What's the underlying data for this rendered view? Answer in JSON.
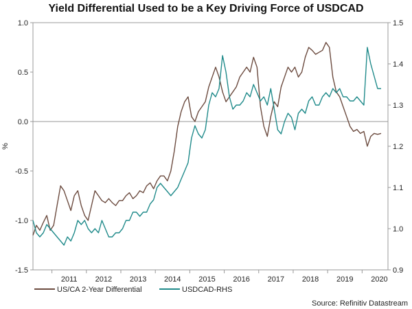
{
  "chart_data": {
    "type": "line",
    "title": "Yield Differential Used to be a Key Driving Force of USDCAD",
    "ylabel": "%",
    "ylim": [
      -1.5,
      1.0
    ],
    "y2lim": [
      0.9,
      1.5
    ],
    "yticks": [
      "1.0",
      "0.5",
      "0.0",
      "-0.5",
      "-1.0",
      "-1.5"
    ],
    "yticks_values": [
      1.0,
      0.5,
      0.0,
      -0.5,
      -1.0,
      -1.5
    ],
    "y2ticks": [
      "1.5",
      "1.4",
      "1.3",
      "1.2",
      "1.1",
      "1.0",
      "0.9"
    ],
    "y2ticks_values": [
      1.5,
      1.4,
      1.3,
      1.2,
      1.1,
      1.0,
      0.9
    ],
    "xlim": [
      2010.45,
      2020.75
    ],
    "xticks": [
      "2011",
      "2012",
      "2013",
      "2014",
      "2015",
      "2016",
      "2017",
      "2018",
      "2019",
      "2020"
    ],
    "xticks_values": [
      2011,
      2012,
      2013,
      2014,
      2015,
      2016,
      2017,
      2018,
      2019,
      2020
    ],
    "source": "Source: Refinitiv Datastream",
    "zero_line": 0.0,
    "series": [
      {
        "name": "US/CA 2-Year Differential",
        "axis": "left",
        "color": "#6b4a3e",
        "x": [
          2010.45,
          2010.55,
          2010.65,
          2010.75,
          2010.85,
          2010.95,
          2011.05,
          2011.15,
          2011.25,
          2011.35,
          2011.45,
          2011.55,
          2011.65,
          2011.75,
          2011.85,
          2011.95,
          2012.05,
          2012.15,
          2012.25,
          2012.35,
          2012.45,
          2012.55,
          2012.65,
          2012.75,
          2012.85,
          2012.95,
          2013.05,
          2013.15,
          2013.25,
          2013.35,
          2013.45,
          2013.55,
          2013.65,
          2013.75,
          2013.85,
          2013.95,
          2014.05,
          2014.15,
          2014.25,
          2014.35,
          2014.45,
          2014.55,
          2014.65,
          2014.75,
          2014.85,
          2014.95,
          2015.05,
          2015.15,
          2015.25,
          2015.35,
          2015.45,
          2015.55,
          2015.65,
          2015.75,
          2015.85,
          2015.95,
          2016.05,
          2016.15,
          2016.25,
          2016.35,
          2016.45,
          2016.55,
          2016.65,
          2016.75,
          2016.85,
          2016.95,
          2017.05,
          2017.15,
          2017.25,
          2017.35,
          2017.45,
          2017.55,
          2017.65,
          2017.75,
          2017.85,
          2017.95,
          2018.05,
          2018.15,
          2018.25,
          2018.35,
          2018.45,
          2018.55,
          2018.65,
          2018.75,
          2018.85,
          2018.95,
          2019.05,
          2019.15,
          2019.25,
          2019.35,
          2019.45,
          2019.55,
          2019.65,
          2019.75,
          2019.85,
          2019.95,
          2020.05,
          2020.15,
          2020.25,
          2020.35,
          2020.45,
          2020.55
        ],
        "values": [
          -1.15,
          -1.05,
          -1.1,
          -1.02,
          -0.95,
          -1.1,
          -1.05,
          -0.85,
          -0.65,
          -0.7,
          -0.8,
          -0.9,
          -0.75,
          -0.7,
          -0.85,
          -0.95,
          -1.0,
          -0.85,
          -0.7,
          -0.75,
          -0.8,
          -0.82,
          -0.78,
          -0.82,
          -0.85,
          -0.8,
          -0.8,
          -0.75,
          -0.72,
          -0.78,
          -0.75,
          -0.7,
          -0.72,
          -0.65,
          -0.62,
          -0.68,
          -0.6,
          -0.55,
          -0.55,
          -0.6,
          -0.5,
          -0.3,
          -0.05,
          0.1,
          0.2,
          0.25,
          0.05,
          0.0,
          0.1,
          0.15,
          0.2,
          0.35,
          0.45,
          0.55,
          0.45,
          0.3,
          0.2,
          0.25,
          0.3,
          0.35,
          0.45,
          0.5,
          0.55,
          0.5,
          0.65,
          0.55,
          0.15,
          -0.05,
          -0.15,
          0.05,
          0.2,
          0.15,
          0.35,
          0.45,
          0.55,
          0.5,
          0.55,
          0.45,
          0.5,
          0.65,
          0.75,
          0.72,
          0.68,
          0.7,
          0.72,
          0.8,
          0.75,
          0.45,
          0.3,
          0.25,
          0.15,
          0.05,
          -0.05,
          -0.1,
          -0.08,
          -0.12,
          -0.1,
          -0.25,
          -0.15,
          -0.12,
          -0.13,
          -0.12
        ]
      },
      {
        "name": "USDCAD-RHS",
        "axis": "right",
        "color": "#1f8a8a",
        "x": [
          2010.45,
          2010.55,
          2010.65,
          2010.75,
          2010.85,
          2010.95,
          2011.05,
          2011.15,
          2011.25,
          2011.35,
          2011.45,
          2011.55,
          2011.65,
          2011.75,
          2011.85,
          2011.95,
          2012.05,
          2012.15,
          2012.25,
          2012.35,
          2012.45,
          2012.55,
          2012.65,
          2012.75,
          2012.85,
          2012.95,
          2013.05,
          2013.15,
          2013.25,
          2013.35,
          2013.45,
          2013.55,
          2013.65,
          2013.75,
          2013.85,
          2013.95,
          2014.05,
          2014.15,
          2014.25,
          2014.35,
          2014.45,
          2014.55,
          2014.65,
          2014.75,
          2014.85,
          2014.95,
          2015.05,
          2015.15,
          2015.25,
          2015.35,
          2015.45,
          2015.55,
          2015.65,
          2015.75,
          2015.85,
          2015.95,
          2016.05,
          2016.15,
          2016.25,
          2016.35,
          2016.45,
          2016.55,
          2016.65,
          2016.75,
          2016.85,
          2016.95,
          2017.05,
          2017.15,
          2017.25,
          2017.35,
          2017.45,
          2017.55,
          2017.65,
          2017.75,
          2017.85,
          2017.95,
          2018.05,
          2018.15,
          2018.25,
          2018.35,
          2018.45,
          2018.55,
          2018.65,
          2018.75,
          2018.85,
          2018.95,
          2019.05,
          2019.15,
          2019.25,
          2019.35,
          2019.45,
          2019.55,
          2019.65,
          2019.75,
          2019.85,
          2019.95,
          2020.05,
          2020.15,
          2020.25,
          2020.35,
          2020.45,
          2020.55
        ],
        "values": [
          1.02,
          0.99,
          0.98,
          0.99,
          1.01,
          1.0,
          0.99,
          0.98,
          0.97,
          0.96,
          0.98,
          0.97,
          0.99,
          1.02,
          1.01,
          1.02,
          1.0,
          0.99,
          1.0,
          0.99,
          1.02,
          1.0,
          0.98,
          0.98,
          0.99,
          0.99,
          1.0,
          1.02,
          1.02,
          1.04,
          1.04,
          1.03,
          1.04,
          1.04,
          1.06,
          1.07,
          1.1,
          1.11,
          1.1,
          1.09,
          1.08,
          1.09,
          1.1,
          1.12,
          1.14,
          1.16,
          1.22,
          1.25,
          1.23,
          1.22,
          1.24,
          1.3,
          1.33,
          1.32,
          1.34,
          1.42,
          1.38,
          1.32,
          1.29,
          1.3,
          1.3,
          1.31,
          1.33,
          1.32,
          1.35,
          1.33,
          1.31,
          1.32,
          1.3,
          1.34,
          1.29,
          1.24,
          1.23,
          1.26,
          1.28,
          1.27,
          1.24,
          1.28,
          1.29,
          1.28,
          1.31,
          1.32,
          1.3,
          1.3,
          1.32,
          1.33,
          1.32,
          1.34,
          1.33,
          1.34,
          1.32,
          1.32,
          1.31,
          1.31,
          1.32,
          1.31,
          1.3,
          1.44,
          1.4,
          1.37,
          1.34,
          1.34
        ]
      }
    ]
  }
}
